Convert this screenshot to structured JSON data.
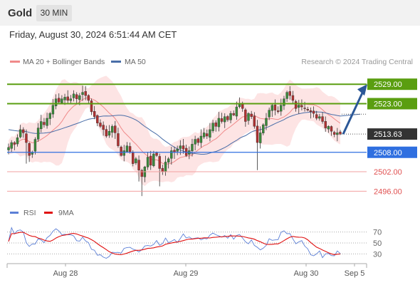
{
  "header": {
    "instrument": "Gold",
    "timeframe": "30 MIN",
    "timestamp": "Friday, August 30, 2024 6:51:44 AM CET"
  },
  "legend": {
    "ma20_label": "MA 20 + Bollinger Bands",
    "ma50_label": "MA 50",
    "copyright": "Research © 2024 Trading Central",
    "rsi_label": "RSI",
    "rsi_ma_label": "9MA"
  },
  "colors": {
    "up_candle": "#3a8a3a",
    "down_candle": "#b03030",
    "bollinger_fill": "#fde4e4",
    "ma20": "#f08a8a",
    "ma50": "#4a6ea8",
    "resistance": "#5a9e10",
    "support": "#2f6fe0",
    "target_support": "#e05050",
    "current_price": "#333333",
    "arrow": "#2b5797",
    "rsi": "#5b7fd6",
    "rsi_ma": "#e01010"
  },
  "chart_data": [
    {
      "type": "candlestick",
      "title": "",
      "x_labels": [
        "Aug 28",
        "Aug 29",
        "Aug 30",
        "Sep 5"
      ],
      "ylim": [
        2493,
        2533
      ],
      "levels": [
        {
          "value": 2529.0,
          "label": "2529.00",
          "kind": "resistance"
        },
        {
          "value": 2523.0,
          "label": "2523.00",
          "kind": "resistance"
        },
        {
          "value": 2513.63,
          "label": "2513.63",
          "kind": "current"
        },
        {
          "value": 2508.0,
          "label": "2508.00",
          "kind": "support"
        },
        {
          "value": 2502.0,
          "label": "2502.00",
          "kind": "target"
        },
        {
          "value": 2496.0,
          "label": "2496.00",
          "kind": "target"
        }
      ],
      "forecast": {
        "from": 2513.6,
        "to": 2529.0
      },
      "close_series": [
        2509.5,
        2511.0,
        2510.5,
        2512.5,
        2515.0,
        2514.0,
        2511.0,
        2507.0,
        2508.0,
        2512.0,
        2515.5,
        2517.5,
        2516.5,
        2518.5,
        2520.0,
        2522.5,
        2524.5,
        2523.5,
        2524.5,
        2525.0,
        2524.0,
        2524.5,
        2526.0,
        2524.5,
        2525.5,
        2526.5,
        2525.5,
        2524.0,
        2520.5,
        2519.0,
        2517.0,
        2516.0,
        2515.0,
        2513.0,
        2514.5,
        2516.0,
        2514.0,
        2510.0,
        2507.0,
        2508.5,
        2510.0,
        2508.0,
        2504.5,
        2506.0,
        2502.5,
        2500.5,
        2503.5,
        2506.5,
        2504.0,
        2507.5,
        2507.0,
        2503.0,
        2502.0,
        2505.0,
        2506.0,
        2508.5,
        2508.0,
        2509.0,
        2510.0,
        2509.0,
        2507.0,
        2508.5,
        2510.5,
        2512.0,
        2511.0,
        2513.0,
        2514.0,
        2513.0,
        2515.0,
        2517.0,
        2516.0,
        2518.5,
        2517.5,
        2519.0,
        2518.0,
        2520.0,
        2519.5,
        2522.0,
        2523.0,
        2521.5,
        2517.5,
        2520.0,
        2519.0,
        2516.0,
        2511.0,
        2514.0,
        2516.5,
        2518.5,
        2521.0,
        2522.5,
        2521.0,
        2520.5,
        2522.5,
        2524.5,
        2526.5,
        2525.5,
        2524.0,
        2521.5,
        2522.5,
        2522.0,
        2521.5,
        2521.0,
        2520.5,
        2520.0,
        2518.5,
        2519.0,
        2517.5,
        2515.5,
        2516.0,
        2514.5,
        2513.5,
        2514.0,
        2513.6
      ],
      "ma20_series_start": 2511.5,
      "ma50_series_start": 2515.0
    },
    {
      "type": "line",
      "title": "",
      "series_names": [
        "RSI",
        "9MA"
      ],
      "ylim": [
        20,
        80
      ],
      "ticks": [
        70,
        50,
        30
      ],
      "dotted_levels": [
        70,
        50,
        30
      ]
    }
  ]
}
